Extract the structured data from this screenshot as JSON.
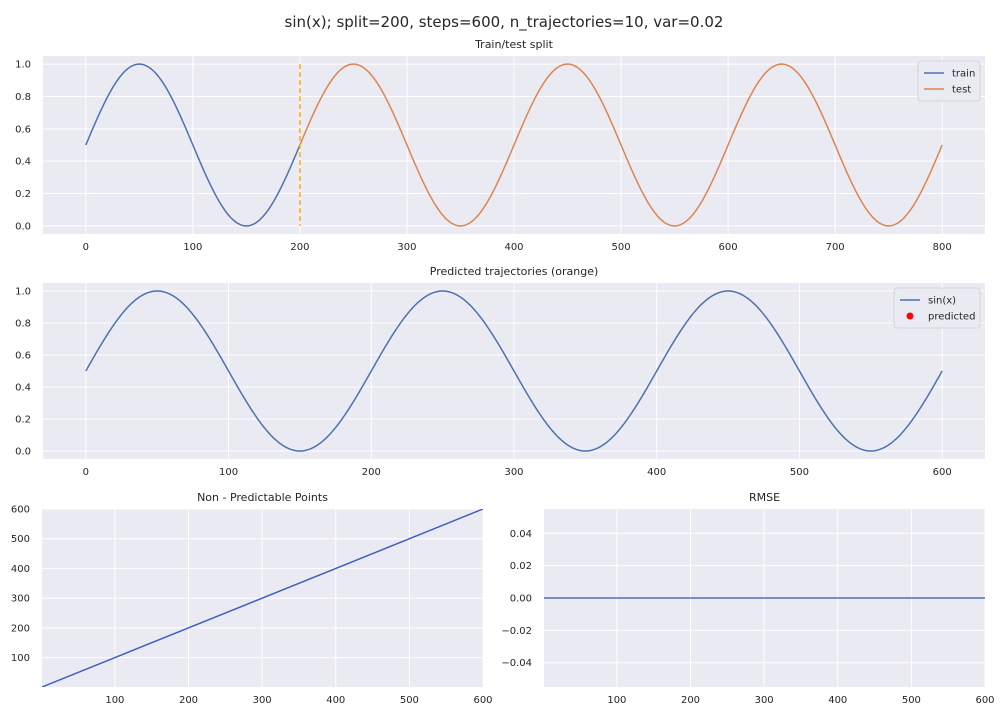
{
  "figure": {
    "suptitle": "sin(x); split=200, steps=600, n_trajectories=10, var=0.02"
  },
  "colors": {
    "blue": "#4c72b0",
    "orange": "#dd8452",
    "split_line": "#ffa726",
    "predicted": "#ff0000",
    "line3": "#3f5fbf"
  },
  "chart_data": [
    {
      "id": "train-test",
      "type": "line",
      "title": "Train/test split",
      "xlim": [
        -40,
        840
      ],
      "ylim": [
        -0.05,
        1.05
      ],
      "xticks": [
        0,
        100,
        200,
        300,
        400,
        500,
        600,
        700,
        800
      ],
      "yticks": [
        0.0,
        0.2,
        0.4,
        0.6,
        0.8,
        1.0
      ],
      "ytick_labels": [
        "0.0",
        "0.2",
        "0.4",
        "0.6",
        "0.8",
        "1.0"
      ],
      "series": [
        {
          "name": "train",
          "function": "0.5+0.5*sin(2*pi*x/200)",
          "x_range": [
            0,
            200
          ],
          "color": "#4c72b0"
        },
        {
          "name": "test",
          "function": "0.5+0.5*sin(2*pi*x/200)",
          "x_range": [
            200,
            800
          ],
          "color": "#dd8452"
        }
      ],
      "vline": {
        "x": 200,
        "ymin": 0.0,
        "ymax": 1.0,
        "style": "dashed",
        "color": "#ffa726"
      },
      "legend": {
        "position": "top-right",
        "entries": [
          "train",
          "test"
        ]
      }
    },
    {
      "id": "predicted",
      "type": "line",
      "title": "Predicted trajectories (orange)",
      "xlim": [
        -30,
        630
      ],
      "ylim": [
        -0.05,
        1.05
      ],
      "xticks": [
        0,
        100,
        200,
        300,
        400,
        500,
        600
      ],
      "yticks": [
        0.0,
        0.2,
        0.4,
        0.6,
        0.8,
        1.0
      ],
      "ytick_labels": [
        "0.0",
        "0.2",
        "0.4",
        "0.6",
        "0.8",
        "1.0"
      ],
      "series": [
        {
          "name": "sin(x)",
          "function": "0.5+0.5*sin(2*pi*x/200)",
          "x_range": [
            0,
            600
          ],
          "color": "#4c72b0"
        },
        {
          "name": "predicted",
          "marker": "dot",
          "points": [],
          "color": "#ff0000"
        }
      ],
      "legend": {
        "position": "top-right",
        "entries": [
          "sin(x)",
          "predicted"
        ]
      }
    },
    {
      "id": "non-predictable",
      "type": "line",
      "title": "Non - Predictable Points",
      "xlim": [
        1,
        600
      ],
      "ylim": [
        1,
        600
      ],
      "xticks": [
        100,
        200,
        300,
        400,
        500,
        600
      ],
      "yticks": [
        100,
        200,
        300,
        400,
        500,
        600
      ],
      "ytick_labels": [
        "100",
        "200",
        "300",
        "400",
        "500",
        "600"
      ],
      "series": [
        {
          "name": "",
          "x": [
            1,
            600
          ],
          "y": [
            1,
            600
          ],
          "color": "#3f5fbf"
        }
      ]
    },
    {
      "id": "rmse",
      "type": "line",
      "title": "RMSE",
      "xlim": [
        1,
        600
      ],
      "ylim": [
        -0.055,
        0.055
      ],
      "xticks": [
        100,
        200,
        300,
        400,
        500,
        600
      ],
      "yticks": [
        -0.04,
        -0.02,
        0.0,
        0.02,
        0.04
      ],
      "ytick_labels": [
        "−0.04",
        "−0.02",
        "0.00",
        "0.02",
        "0.04"
      ],
      "series": [
        {
          "name": "",
          "x": [
            1,
            600
          ],
          "y": [
            0.0,
            0.0
          ],
          "color": "#4c72b0"
        }
      ]
    }
  ]
}
